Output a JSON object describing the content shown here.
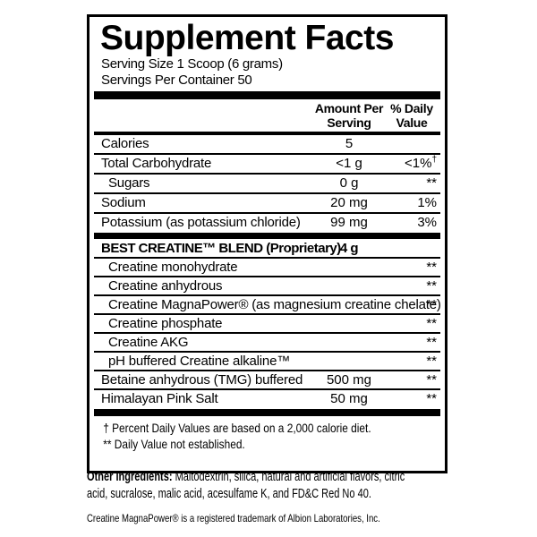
{
  "label": {
    "title": "Supplement Facts",
    "serving_size": "Serving Size 1 Scoop (6 grams)",
    "servings_per_container": "Servings Per Container 50",
    "columns": {
      "amount_header": "Amount Per\nServing",
      "daily_value_header": "% Daily\nValue"
    }
  },
  "table": {
    "rows": [
      {
        "name": "Calories",
        "amount": "5",
        "dv": "",
        "divider": false
      },
      {
        "name": "Total Carbohydrate",
        "amount": "<1 g",
        "dv": "<1%",
        "dv_sup": "†",
        "divider": true
      },
      {
        "name": "Sugars",
        "amount": "0 g",
        "dv": "**",
        "indent": true,
        "divider": true
      },
      {
        "name": "Sodium",
        "amount": "20 mg",
        "dv": "1%",
        "divider": true
      },
      {
        "name": "Potassium (as potassium chloride)",
        "amount": "99 mg",
        "dv": "3%",
        "divider": true
      },
      {
        "name": "BEST CREATINE™ BLEND (Proprietary)",
        "amount": "4 g",
        "dv": "",
        "bold": true,
        "blend": true,
        "thick_bar_before": true,
        "divider": false
      },
      {
        "name": "Creatine monohydrate",
        "amount": "",
        "dv": "**",
        "indent": true,
        "blend": true,
        "divider": true
      },
      {
        "name": "Creatine anhydrous",
        "amount": "",
        "dv": "**",
        "indent": true,
        "blend": true,
        "divider": true
      },
      {
        "name": "Creatine MagnaPower® (as magnesium creatine chelate)",
        "amount": "",
        "dv": "**",
        "indent": true,
        "blend": true,
        "divider": true
      },
      {
        "name": "Creatine phosphate",
        "amount": "",
        "dv": "**",
        "indent": true,
        "blend": true,
        "divider": true
      },
      {
        "name": "Creatine AKG",
        "amount": "",
        "dv": "**",
        "indent": true,
        "blend": true,
        "divider": true
      },
      {
        "name": "pH buffered Creatine alkaline™",
        "amount": "",
        "dv": "**",
        "indent": true,
        "blend": true,
        "divider": true
      },
      {
        "name": "Betaine anhydrous (TMG) buffered",
        "amount": "500 mg",
        "dv": "**",
        "blend": true,
        "divider": true
      },
      {
        "name": "Himalayan Pink Salt",
        "amount": "50 mg",
        "dv": "**",
        "blend": true,
        "divider": true
      }
    ]
  },
  "footnotes": [
    "† Percent Daily Values are based on a 2,000 calorie diet.",
    "** Daily Value not established."
  ],
  "other_ingredients": {
    "label": "Other Ingredients:",
    "line1": "Maltodextrin, silica, natural and artificial flavors, citric",
    "line2": "acid, sucralose, malic acid, acesulfame K, and FD&C Red No 40."
  },
  "trademark_note": "Creatine MagnaPower® is a registered trademark of Albion Laboratories, Inc.",
  "colors": {
    "ink": "#000000",
    "background": "#ffffff"
  }
}
